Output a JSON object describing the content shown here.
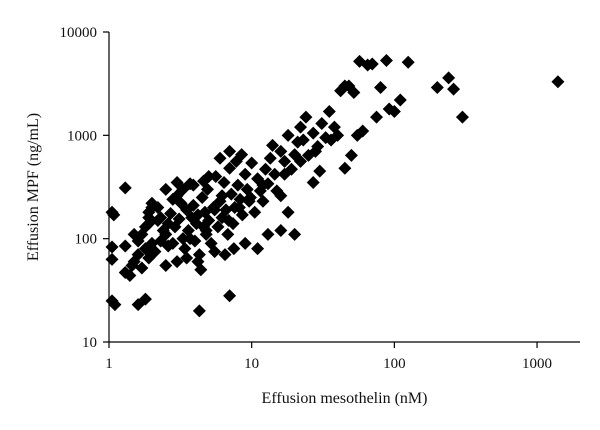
{
  "chart_data": {
    "type": "scatter",
    "title": "",
    "xlabel": "Effusion mesothelin (nM)",
    "ylabel": "Effusion MPF (ng/mL)",
    "xscale": "log",
    "yscale": "log",
    "xlim": [
      1,
      2000
    ],
    "ylim": [
      10,
      10000
    ],
    "x_ticks": [
      1,
      10,
      100,
      1000
    ],
    "x_tick_labels": [
      "1",
      "10",
      "100",
      "1000"
    ],
    "y_ticks": [
      10,
      100,
      1000,
      10000
    ],
    "y_tick_labels": [
      "10",
      "100",
      "1000",
      "10000"
    ],
    "grid": false,
    "legend": "none",
    "marker": "diamond",
    "marker_color": "#000000",
    "points": [
      [
        1.05,
        180
      ],
      [
        1.08,
        170
      ],
      [
        1.05,
        83
      ],
      [
        1.05,
        63
      ],
      [
        1.05,
        25
      ],
      [
        1.1,
        23
      ],
      [
        1.3,
        310
      ],
      [
        1.6,
        23
      ],
      [
        1.8,
        26
      ],
      [
        1.3,
        47
      ],
      [
        1.4,
        44
      ],
      [
        1.45,
        55
      ],
      [
        1.5,
        60
      ],
      [
        1.6,
        70
      ],
      [
        1.7,
        52
      ],
      [
        1.8,
        80
      ],
      [
        1.9,
        65
      ],
      [
        2.0,
        90
      ],
      [
        1.6,
        95
      ],
      [
        1.7,
        110
      ],
      [
        1.8,
        130
      ],
      [
        1.9,
        160
      ],
      [
        2.0,
        200
      ],
      [
        1.9,
        180
      ],
      [
        2.1,
        75
      ],
      [
        2.2,
        150
      ],
      [
        2.3,
        95
      ],
      [
        2.4,
        120
      ],
      [
        2.5,
        110
      ],
      [
        2.6,
        140
      ],
      [
        2.7,
        175
      ],
      [
        2.8,
        90
      ],
      [
        2.9,
        130
      ],
      [
        3.0,
        260
      ],
      [
        3.1,
        155
      ],
      [
        3.2,
        220
      ],
      [
        3.3,
        100
      ],
      [
        3.4,
        80
      ],
      [
        3.5,
        190
      ],
      [
        3.6,
        120
      ],
      [
        3.7,
        340
      ],
      [
        3.8,
        160
      ],
      [
        3.9,
        210
      ],
      [
        4.0,
        95
      ],
      [
        4.1,
        140
      ],
      [
        4.2,
        170
      ],
      [
        4.3,
        70
      ],
      [
        4.4,
        50
      ],
      [
        4.5,
        250
      ],
      [
        4.6,
        130
      ],
      [
        4.7,
        180
      ],
      [
        4.8,
        110
      ],
      [
        4.9,
        300
      ],
      [
        5.0,
        150
      ],
      [
        5.2,
        90
      ],
      [
        5.4,
        200
      ],
      [
        5.6,
        400
      ],
      [
        5.8,
        130
      ],
      [
        6.0,
        230
      ],
      [
        6.2,
        160
      ],
      [
        6.4,
        350
      ],
      [
        6.6,
        190
      ],
      [
        6.8,
        110
      ],
      [
        7.0,
        480
      ],
      [
        7.2,
        270
      ],
      [
        7.4,
        140
      ],
      [
        7.6,
        200
      ],
      [
        7.8,
        560
      ],
      [
        8.0,
        330
      ],
      [
        8.3,
        240
      ],
      [
        8.6,
        170
      ],
      [
        9.0,
        420
      ],
      [
        9.3,
        300
      ],
      [
        9.6,
        230
      ],
      [
        10,
        540
      ],
      [
        10.5,
        180
      ],
      [
        11,
        380
      ],
      [
        11.5,
        290
      ],
      [
        12,
        230
      ],
      [
        12.5,
        470
      ],
      [
        13,
        340
      ],
      [
        13.5,
        600
      ],
      [
        14,
        800
      ],
      [
        14.5,
        420
      ],
      [
        15,
        290
      ],
      [
        16,
        700
      ],
      [
        17,
        560
      ],
      [
        18,
        1000
      ],
      [
        19,
        470
      ],
      [
        20,
        650
      ],
      [
        21,
        860
      ],
      [
        22,
        1200
      ],
      [
        23,
        900
      ],
      [
        24,
        1500
      ],
      [
        25,
        640
      ],
      [
        27,
        1050
      ],
      [
        29,
        780
      ],
      [
        31,
        1300
      ],
      [
        33,
        950
      ],
      [
        35,
        1700
      ],
      [
        3.0,
        60
      ],
      [
        2.5,
        55
      ],
      [
        3.5,
        65
      ],
      [
        4.2,
        60
      ],
      [
        5.5,
        75
      ],
      [
        6.5,
        70
      ],
      [
        7.5,
        80
      ],
      [
        9.0,
        90
      ],
      [
        11,
        80
      ],
      [
        13,
        110
      ],
      [
        16,
        120
      ],
      [
        20,
        110
      ],
      [
        4.3,
        20
      ],
      [
        7.0,
        28
      ],
      [
        2.0,
        220
      ],
      [
        2.2,
        200
      ],
      [
        2.5,
        300
      ],
      [
        3.0,
        350
      ],
      [
        6.0,
        600
      ],
      [
        7.0,
        700
      ],
      [
        8.5,
        650
      ],
      [
        16,
        260
      ],
      [
        18,
        180
      ],
      [
        27,
        350
      ],
      [
        30,
        450
      ],
      [
        45,
        480
      ],
      [
        48,
        3000
      ],
      [
        52,
        2600
      ],
      [
        57,
        5200
      ],
      [
        65,
        4800
      ],
      [
        70,
        4900
      ],
      [
        80,
        2900
      ],
      [
        88,
        5300
      ],
      [
        92,
        1800
      ],
      [
        100,
        1700
      ],
      [
        110,
        2200
      ],
      [
        125,
        5100
      ],
      [
        200,
        2900
      ],
      [
        240,
        3600
      ],
      [
        260,
        2800
      ],
      [
        300,
        1500
      ],
      [
        75,
        1500
      ],
      [
        60,
        1100
      ],
      [
        55,
        1000
      ],
      [
        50,
        640
      ],
      [
        42,
        2700
      ],
      [
        45,
        3000
      ],
      [
        38,
        1200
      ],
      [
        40,
        1000
      ],
      [
        1400,
        3300
      ],
      [
        5.5,
        190
      ],
      [
        6.2,
        260
      ],
      [
        4.6,
        360
      ],
      [
        3.3,
        300
      ],
      [
        2.8,
        240
      ],
      [
        3.9,
        330
      ],
      [
        5.0,
        400
      ],
      [
        2.3,
        160
      ],
      [
        1.9,
        140
      ],
      [
        2.6,
        85
      ],
      [
        3.7,
        100
      ],
      [
        4.8,
        120
      ],
      [
        6.9,
        150
      ],
      [
        8.2,
        200
      ],
      [
        9.8,
        250
      ],
      [
        12,
        330
      ],
      [
        17,
        420
      ],
      [
        22,
        560
      ],
      [
        28,
        700
      ],
      [
        36,
        900
      ],
      [
        1.3,
        85
      ],
      [
        1.5,
        110
      ]
    ]
  }
}
